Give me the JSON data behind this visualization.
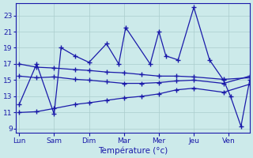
{
  "x_labels": [
    "Lun",
    "Sam",
    "Dim",
    "Mar",
    "Mer",
    "Jeu",
    "Ven"
  ],
  "xlabel": "Température (°c)",
  "yticks": [
    9,
    11,
    13,
    15,
    17,
    19,
    21,
    23
  ],
  "ylim": [
    8.5,
    24.5
  ],
  "xlim": [
    -0.1,
    6.6
  ],
  "bg_color": "#cceaea",
  "grid_color": "#aacccc",
  "line_color": "#1a1aaa",
  "markersize": 2.5,
  "line1_x": [
    0.0,
    0.5,
    1.0,
    1.2,
    1.6,
    2.0,
    2.5,
    2.85,
    3.05,
    3.75,
    4.0,
    4.2,
    4.55,
    5.0,
    5.45,
    5.85,
    6.05,
    6.35,
    6.6
  ],
  "line1_y": [
    12,
    17,
    10.8,
    19,
    18,
    17.2,
    19.5,
    17,
    21.5,
    17,
    21,
    18,
    17.5,
    24,
    17.5,
    15.0,
    13,
    9.3,
    15
  ],
  "line2_x": [
    0.0,
    0.5,
    1.0,
    1.6,
    2.0,
    2.5,
    3.0,
    3.5,
    4.0,
    4.5,
    5.0,
    5.85,
    6.6
  ],
  "line2_y": [
    17,
    16.6,
    16.5,
    16.3,
    16.2,
    16.0,
    15.9,
    15.7,
    15.5,
    15.5,
    15.4,
    15.1,
    15.3
  ],
  "line3_x": [
    0.0,
    0.5,
    1.0,
    1.6,
    2.0,
    2.5,
    3.0,
    3.5,
    4.0,
    4.5,
    5.0,
    5.85,
    6.6
  ],
  "line3_y": [
    15.5,
    15.3,
    15.4,
    15.1,
    15.0,
    14.8,
    14.6,
    14.6,
    14.7,
    14.9,
    15.0,
    14.6,
    15.5
  ],
  "line4_x": [
    0.0,
    0.5,
    1.0,
    1.6,
    2.0,
    2.5,
    3.0,
    3.5,
    4.0,
    4.5,
    5.0,
    5.85,
    6.6
  ],
  "line4_y": [
    11,
    11.1,
    11.5,
    12.0,
    12.2,
    12.5,
    12.8,
    13.0,
    13.3,
    13.8,
    14.0,
    13.5,
    14.5
  ]
}
